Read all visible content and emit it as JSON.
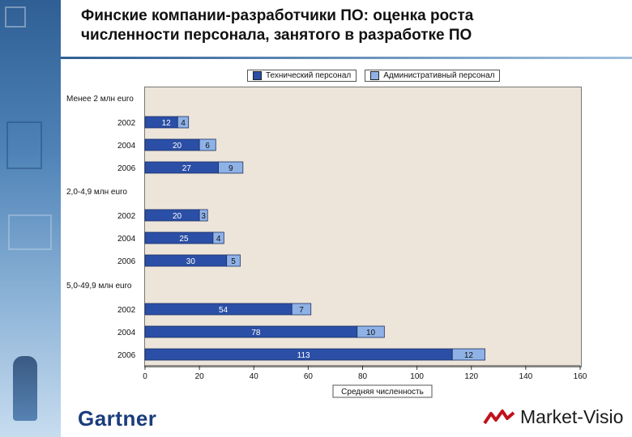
{
  "title_line1": "Финские компании-разработчики ПО: оценка роста",
  "title_line2": "численности персонала, занятого в разработке ПО",
  "logos": {
    "left": "Gartner",
    "right": "Market-Visio"
  },
  "colors": {
    "technical": "#2b4fa6",
    "administrative": "#8fb2e6",
    "plot_bg": "#ede5d9"
  },
  "chart_data": {
    "type": "bar",
    "orientation": "horizontal",
    "stacked": true,
    "title": "Финские компании-разработчики ПО: оценка роста численности персонала, занятого в разработке ПО",
    "xlabel": "Средняя численность",
    "ylabel": "",
    "xlim": [
      0,
      160
    ],
    "xticks": [
      0,
      20,
      40,
      60,
      80,
      100,
      120,
      140,
      160
    ],
    "legend": [
      "Технический персонал",
      "Административный персонал"
    ],
    "legend_position": "top",
    "groups": [
      {
        "label": "Менее 2 млн euro",
        "years": [
          "2002",
          "2004",
          "2006"
        ],
        "technical": [
          12,
          20,
          27
        ],
        "administrative": [
          4,
          6,
          9
        ]
      },
      {
        "label": "2,0-4,9 млн euro",
        "years": [
          "2002",
          "2004",
          "2006"
        ],
        "technical": [
          20,
          25,
          30
        ],
        "administrative": [
          3,
          4,
          5
        ]
      },
      {
        "label": "5,0-49,9 млн euro",
        "years": [
          "2002",
          "2004",
          "2006"
        ],
        "technical": [
          54,
          78,
          113
        ],
        "administrative": [
          7,
          10,
          12
        ]
      }
    ]
  }
}
